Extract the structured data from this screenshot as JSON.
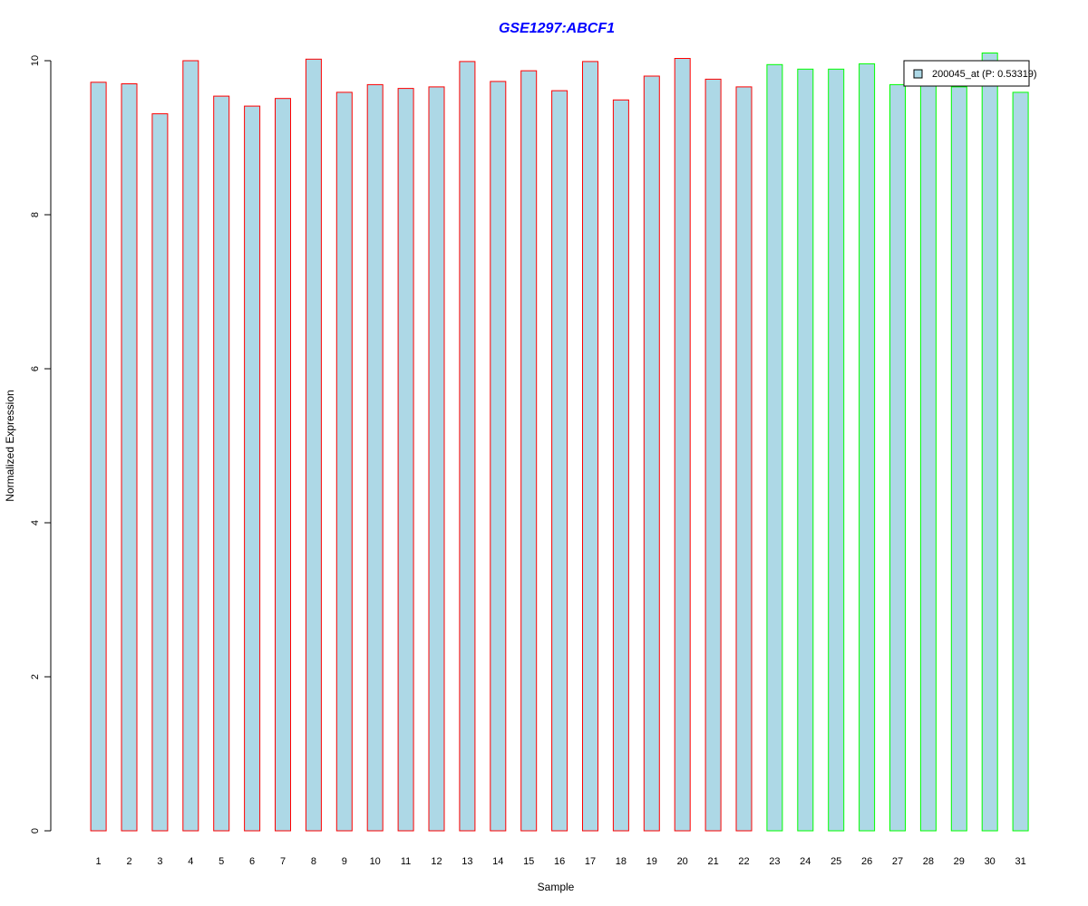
{
  "chart_data": {
    "type": "bar",
    "title": "GSE1297:ABCF1",
    "xlabel": "Sample",
    "ylabel": "Normalized Expression",
    "categories": [
      "1",
      "2",
      "3",
      "4",
      "5",
      "6",
      "7",
      "8",
      "9",
      "10",
      "11",
      "12",
      "13",
      "14",
      "15",
      "16",
      "17",
      "18",
      "19",
      "20",
      "21",
      "22",
      "23",
      "24",
      "25",
      "26",
      "27",
      "28",
      "29",
      "30",
      "31"
    ],
    "values": [
      9.72,
      9.7,
      9.31,
      10.0,
      9.54,
      9.41,
      9.51,
      10.02,
      9.59,
      9.69,
      9.64,
      9.66,
      9.99,
      9.73,
      9.87,
      9.61,
      9.99,
      9.49,
      9.8,
      10.03,
      9.76,
      9.66,
      9.95,
      9.89,
      9.89,
      9.96,
      9.69,
      9.7,
      9.66,
      10.1,
      9.59
    ],
    "group": [
      "red",
      "red",
      "red",
      "red",
      "red",
      "red",
      "red",
      "red",
      "red",
      "red",
      "red",
      "red",
      "red",
      "red",
      "red",
      "red",
      "red",
      "red",
      "red",
      "red",
      "red",
      "red",
      "green",
      "green",
      "green",
      "green",
      "green",
      "green",
      "green",
      "green",
      "green"
    ],
    "ylim": [
      0,
      10
    ],
    "yticks": [
      0,
      2,
      4,
      6,
      8,
      10
    ],
    "legend": {
      "label": "200045_at (P: 0.53319)",
      "placement": "top-right"
    },
    "grid": false,
    "colors": {
      "bar_fill": "#add8e6",
      "border_group1": "#ff0000",
      "border_group2": "#00ff00",
      "title": "#0000ff",
      "axis": "#000000"
    }
  }
}
